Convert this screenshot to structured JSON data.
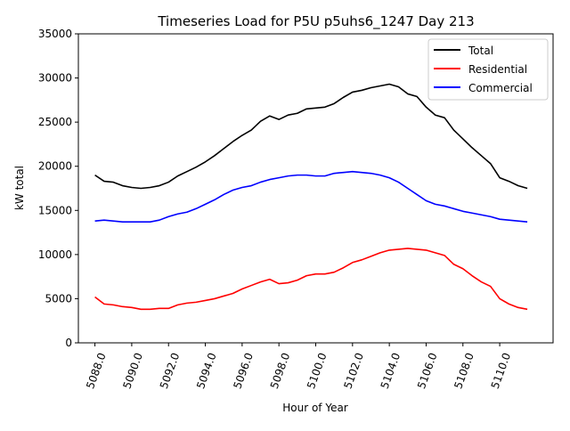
{
  "chart_data": {
    "type": "line",
    "title": "Timeseries Load for P5U p5uhs6_1247  Day 213",
    "xlabel": "Hour of Year",
    "ylabel": "kW total",
    "xlim": [
      5087.1,
      5112.9
    ],
    "ylim": [
      0,
      35000
    ],
    "x_ticks": [
      5088,
      5090,
      5092,
      5094,
      5096,
      5098,
      5100,
      5102,
      5104,
      5106,
      5108,
      5110
    ],
    "x_tick_labels": [
      "5088.0",
      "5090.0",
      "5092.0",
      "5094.0",
      "5096.0",
      "5098.0",
      "5100.0",
      "5102.0",
      "5104.0",
      "5106.0",
      "5108.0",
      "5110.0"
    ],
    "y_ticks": [
      0,
      5000,
      10000,
      15000,
      20000,
      25000,
      30000,
      35000
    ],
    "y_tick_labels": [
      "0",
      "5000",
      "10000",
      "15000",
      "20000",
      "25000",
      "30000",
      "35000"
    ],
    "grid": false,
    "legend_position": "top-right",
    "x": [
      5088.0,
      5088.5,
      5089.0,
      5089.5,
      5090.0,
      5090.5,
      5091.0,
      5091.5,
      5092.0,
      5092.5,
      5093.0,
      5093.5,
      5094.0,
      5094.5,
      5095.0,
      5095.5,
      5096.0,
      5096.5,
      5097.0,
      5097.5,
      5098.0,
      5098.5,
      5099.0,
      5099.5,
      5100.0,
      5100.5,
      5101.0,
      5101.5,
      5102.0,
      5102.5,
      5103.0,
      5103.5,
      5104.0,
      5104.5,
      5105.0,
      5105.5,
      5106.0,
      5106.5,
      5107.0,
      5107.5,
      5108.0,
      5108.5,
      5109.0,
      5109.5,
      5110.0,
      5110.5,
      5111.0,
      5111.5
    ],
    "series": [
      {
        "name": "Total",
        "color": "#000000",
        "values": [
          19000,
          18300,
          18200,
          17800,
          17600,
          17500,
          17600,
          17800,
          18200,
          18900,
          19400,
          19900,
          20500,
          21200,
          22000,
          22800,
          23500,
          24100,
          25100,
          25700,
          25300,
          25800,
          26000,
          26500,
          26600,
          26700,
          27100,
          27800,
          28400,
          28600,
          28900,
          29100,
          29300,
          29000,
          28200,
          27900,
          26700,
          25800,
          25500,
          24100,
          23100,
          22100,
          21200,
          20300,
          18700,
          18300,
          17800,
          17500
        ]
      },
      {
        "name": "Residential",
        "color": "#ff0000",
        "values": [
          5200,
          4400,
          4300,
          4100,
          4000,
          3800,
          3800,
          3900,
          3900,
          4300,
          4500,
          4600,
          4800,
          5000,
          5300,
          5600,
          6100,
          6500,
          6900,
          7200,
          6700,
          6800,
          7100,
          7600,
          7800,
          7800,
          8000,
          8500,
          9100,
          9400,
          9800,
          10200,
          10500,
          10600,
          10700,
          10600,
          10500,
          10200,
          9900,
          8900,
          8400,
          7600,
          6900,
          6400,
          5000,
          4400,
          4000,
          3800
        ]
      },
      {
        "name": "Commercial",
        "color": "#0000ff",
        "values": [
          13800,
          13900,
          13800,
          13700,
          13700,
          13700,
          13700,
          13900,
          14300,
          14600,
          14800,
          15200,
          15700,
          16200,
          16800,
          17300,
          17600,
          17800,
          18200,
          18500,
          18700,
          18900,
          19000,
          19000,
          18900,
          18900,
          19200,
          19300,
          19400,
          19300,
          19200,
          19000,
          18700,
          18200,
          17500,
          16800,
          16100,
          15700,
          15500,
          15200,
          14900,
          14700,
          14500,
          14300,
          14000,
          13900,
          13800,
          13700
        ]
      }
    ]
  }
}
